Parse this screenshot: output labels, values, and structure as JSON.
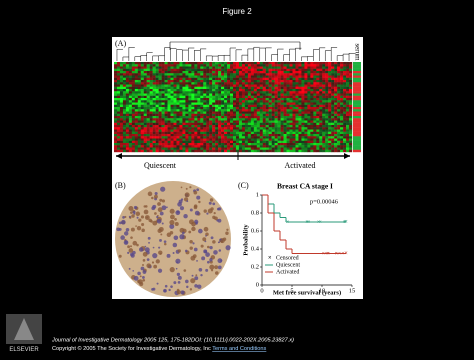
{
  "header": {
    "title": "Figure 2"
  },
  "figure": {
    "panel_a": {
      "label": "(A)",
      "side_label": "serum",
      "groups": [
        "Quiescent",
        "Activated"
      ]
    },
    "panel_b": {
      "label": "(B)"
    },
    "panel_c": {
      "label": "(C)",
      "chart_data": {
        "type": "line",
        "title": "Breast CA stage I",
        "annotation": "p=0.00046",
        "x_label": "Met free survival (years)",
        "y_label": "Probability",
        "xlim": [
          0,
          15
        ],
        "ylim": [
          0,
          1
        ],
        "xticks": [
          0,
          5,
          10,
          15
        ],
        "yticks": [
          0,
          0.2,
          0.4,
          0.6,
          0.8,
          1
        ],
        "censored_label": "Censored",
        "series": [
          {
            "name": "Quiescent",
            "color": "#2a9a7a",
            "x": [
              0,
              1,
              2,
              3,
              4,
              14
            ],
            "values": [
              1,
              0.9,
              0.8,
              0.75,
              0.7,
              0.7
            ]
          },
          {
            "name": "Activated",
            "color": "#c0392b",
            "x": [
              0,
              1,
              2,
              3,
              4,
              5,
              10,
              14
            ],
            "values": [
              1,
              0.8,
              0.6,
              0.5,
              0.4,
              0.35,
              0.35,
              0.35
            ]
          }
        ]
      }
    }
  },
  "footer": {
    "citation": "Journal of Investigative Dermatology 2005 125, 175-182DOI: (10.1111/j.0022-202X.2005.23827.x)",
    "copyright": "Copyright © 2005 The Society for Investigative Dermatology, Inc",
    "link": "Terms and Conditions"
  }
}
